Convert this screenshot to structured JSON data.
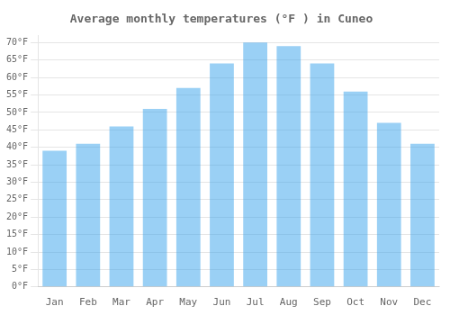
{
  "chart_data": {
    "type": "bar",
    "title": "Average monthly temperatures (°F ) in Cuneo",
    "categories": [
      "Jan",
      "Feb",
      "Mar",
      "Apr",
      "May",
      "Jun",
      "Jul",
      "Aug",
      "Sep",
      "Oct",
      "Nov",
      "Dec"
    ],
    "values": [
      39,
      41,
      46,
      51,
      57,
      64,
      70,
      69,
      64,
      56,
      47,
      41
    ],
    "ylim": [
      0,
      72
    ],
    "yticks": [
      {
        "value": 0,
        "label": "0°F"
      },
      {
        "value": 5,
        "label": "5°F"
      },
      {
        "value": 10,
        "label": "10°F"
      },
      {
        "value": 15,
        "label": "15°F"
      },
      {
        "value": 20,
        "label": "20°F"
      },
      {
        "value": 25,
        "label": "25°F"
      },
      {
        "value": 30,
        "label": "30°F"
      },
      {
        "value": 35,
        "label": "35°F"
      },
      {
        "value": 40,
        "label": "40°F"
      },
      {
        "value": 45,
        "label": "45°F"
      },
      {
        "value": 50,
        "label": "50°F"
      },
      {
        "value": 55,
        "label": "55°F"
      },
      {
        "value": 60,
        "label": "60°F"
      },
      {
        "value": 65,
        "label": "65°F"
      },
      {
        "value": 70,
        "label": "70°F"
      }
    ],
    "grid": true
  }
}
